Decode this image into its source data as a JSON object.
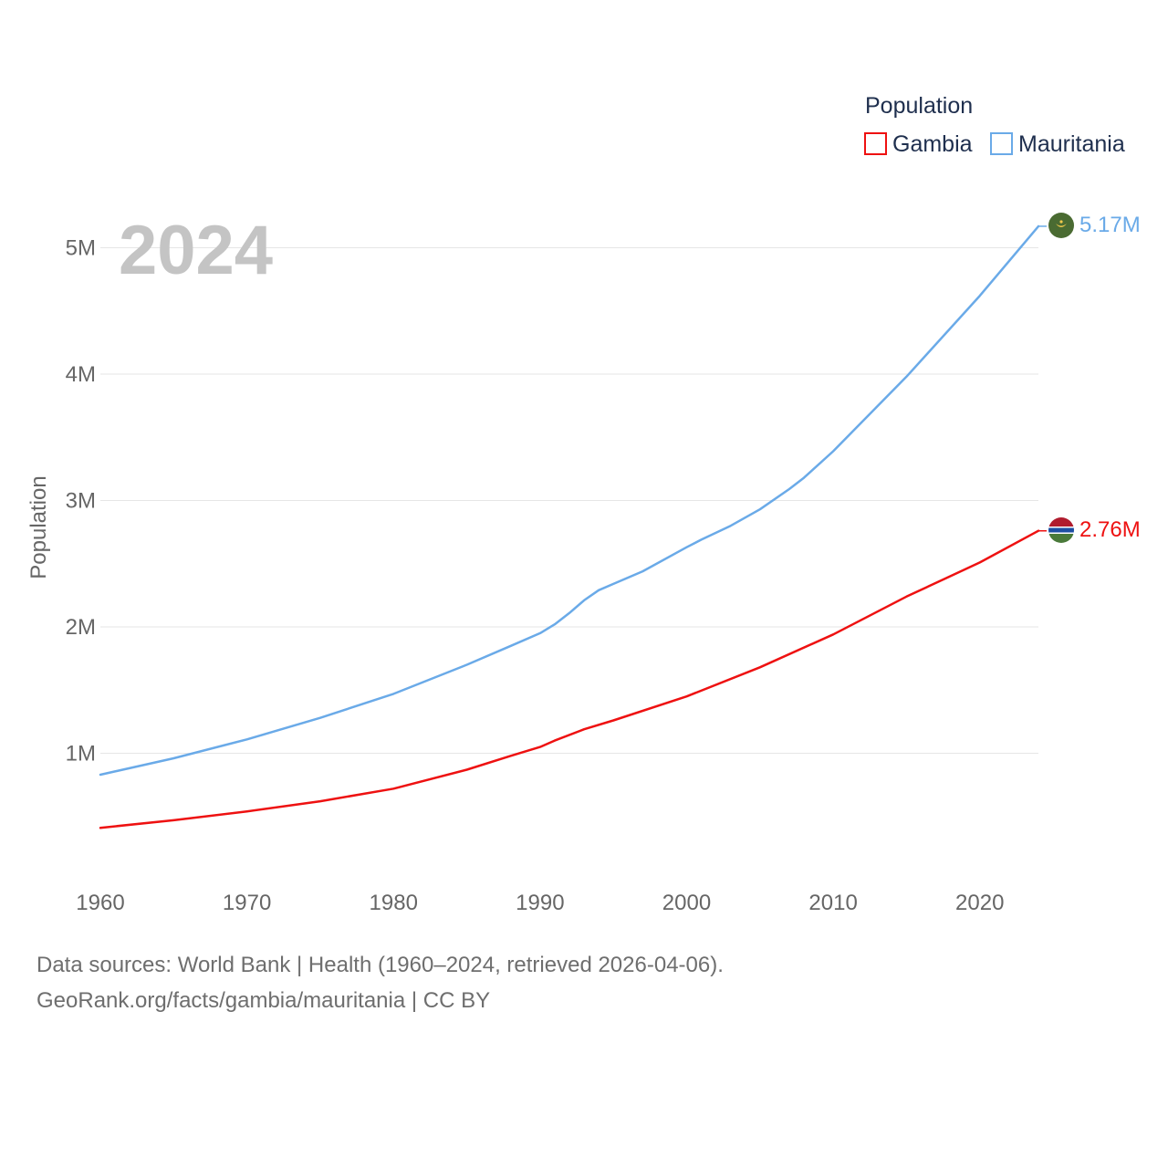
{
  "chart_data": {
    "type": "line",
    "year_label": "2024",
    "ylabel": "Population",
    "xlabel": "",
    "ylim": [
      0,
      5300000
    ],
    "xlim": [
      1960,
      2024
    ],
    "y_ticks": [
      {
        "value": 1000000,
        "label": "1M"
      },
      {
        "value": 2000000,
        "label": "2M"
      },
      {
        "value": 3000000,
        "label": "3M"
      },
      {
        "value": 4000000,
        "label": "4M"
      },
      {
        "value": 5000000,
        "label": "5M"
      }
    ],
    "x_ticks": [
      {
        "value": 1960,
        "label": "1960"
      },
      {
        "value": 1970,
        "label": "1970"
      },
      {
        "value": 1980,
        "label": "1980"
      },
      {
        "value": 1990,
        "label": "1990"
      },
      {
        "value": 2000,
        "label": "2000"
      },
      {
        "value": 2010,
        "label": "2010"
      },
      {
        "value": 2020,
        "label": "2020"
      }
    ],
    "legend": {
      "title": "Population",
      "items": [
        {
          "name": "Gambia",
          "color": "#ee1111"
        },
        {
          "name": "Mauritania",
          "color": "#6aaae8"
        }
      ]
    },
    "series": [
      {
        "name": "Mauritania",
        "color": "#6aaae8",
        "end_label": "5.17M",
        "flag": "mauritania-flag-icon",
        "x": [
          1960,
          1965,
          1970,
          1975,
          1980,
          1985,
          1988,
          1990,
          1991,
          1992,
          1993,
          1994,
          1995,
          1997,
          2000,
          2001,
          2003,
          2005,
          2007,
          2008,
          2010,
          2015,
          2020,
          2024
        ],
        "values": [
          830000,
          960000,
          1110000,
          1280000,
          1470000,
          1700000,
          1850000,
          1950000,
          2020000,
          2110000,
          2210000,
          2290000,
          2340000,
          2440000,
          2630000,
          2690000,
          2800000,
          2930000,
          3090000,
          3180000,
          3390000,
          3980000,
          4620000,
          5170000
        ]
      },
      {
        "name": "Gambia",
        "color": "#ee1111",
        "end_label": "2.76M",
        "flag": "gambia-flag-icon",
        "x": [
          1960,
          1965,
          1970,
          1975,
          1980,
          1985,
          1988,
          1990,
          1991,
          1993,
          1995,
          2000,
          2005,
          2010,
          2015,
          2020,
          2024
        ],
        "values": [
          410000,
          470000,
          540000,
          620000,
          720000,
          870000,
          980000,
          1050000,
          1100000,
          1190000,
          1260000,
          1450000,
          1680000,
          1940000,
          2240000,
          2510000,
          2760000
        ]
      }
    ]
  },
  "footer": {
    "line1": "Data sources: World Bank | Health (1960–2024, retrieved 2026-04-06).",
    "line2": "GeoRank.org/facts/gambia/mauritania | CC BY"
  }
}
